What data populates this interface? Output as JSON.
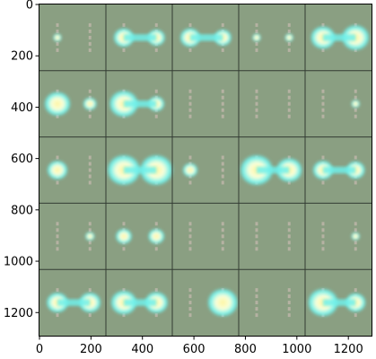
{
  "chart_data": {
    "type": "image",
    "title": "",
    "xlabel": "",
    "ylabel": "",
    "xlim": [
      0,
      1290
    ],
    "ylim": [
      1290,
      0
    ],
    "x_ticks": [
      0,
      200,
      400,
      600,
      800,
      1000,
      1200
    ],
    "x_tick_labels": [
      "0",
      "200",
      "400",
      "600",
      "800",
      "1000",
      "1200"
    ],
    "y_ticks": [
      0,
      200,
      400,
      600,
      800,
      1000,
      1200
    ],
    "y_tick_labels": [
      "0",
      "200",
      "400",
      "600",
      "800",
      "1000",
      "1200"
    ],
    "grid": {
      "rows": 5,
      "cols": 5,
      "tile_size": 258
    },
    "background_color": "#8a9f82",
    "separator_color": "#333b33",
    "blob_colors": [
      "#6ff0ea",
      "#f8ffdc",
      "#fff4a0",
      "#e8c9c9"
    ],
    "tiles": [
      [
        {
          "left": 0.12,
          "right": 0.0,
          "note": "faint marks"
        },
        {
          "left": 0.55,
          "right": 0.45
        },
        {
          "left": 0.55,
          "right": 0.45
        },
        {
          "left": 0.12,
          "right": 0.12
        },
        {
          "left": 0.7,
          "right": 0.8
        }
      ],
      [
        {
          "left": 0.75,
          "right": 0.3
        },
        {
          "left": 0.85,
          "right": 0.4
        },
        {
          "left": 0.0,
          "right": 0.0
        },
        {
          "left": 0.0,
          "right": 0.0
        },
        {
          "left": 0.0,
          "right": 0.12
        }
      ],
      [
        {
          "left": 0.55,
          "right": 0.0
        },
        {
          "left": 1.0,
          "right": 1.0
        },
        {
          "left": 0.35,
          "right": 0.0
        },
        {
          "left": 1.0,
          "right": 0.75
        },
        {
          "left": 0.55,
          "right": 0.5
        }
      ],
      [
        {
          "left": 0.0,
          "right": 0.15
        },
        {
          "left": 0.4,
          "right": 0.4
        },
        {
          "left": 0.0,
          "right": 0.0
        },
        {
          "left": 0.0,
          "right": 0.0
        },
        {
          "left": 0.0,
          "right": 0.12
        }
      ],
      [
        {
          "left": 0.6,
          "right": 0.6
        },
        {
          "left": 0.75,
          "right": 0.65
        },
        {
          "left": 0.0,
          "right": 0.9
        },
        {
          "left": 0.0,
          "right": 0.0
        },
        {
          "left": 0.9,
          "right": 0.55
        }
      ]
    ]
  }
}
